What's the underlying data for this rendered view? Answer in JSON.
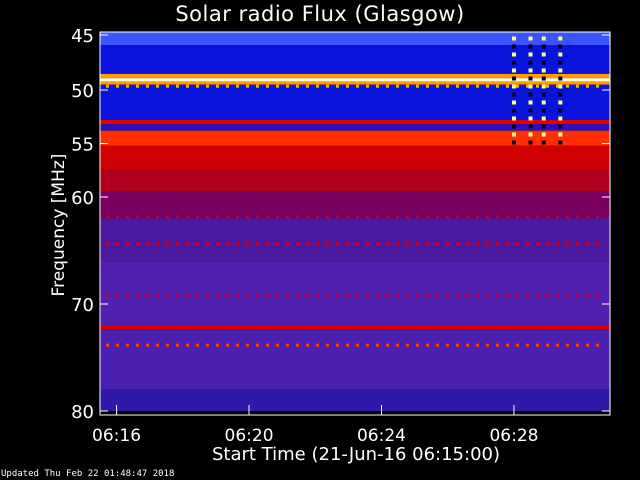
{
  "chart_data": {
    "type": "heatmap",
    "title": "Solar radio Flux (Glasgow)",
    "xlabel": "Start Time (21-Jun-16 06:15:00)",
    "ylabel": "Frequency [MHz]",
    "xlim_minutes_after_0600": [
      15.5,
      30.9
    ],
    "ylim": [
      45,
      80
    ],
    "y_ticks": [
      45,
      50,
      55,
      60,
      70,
      80
    ],
    "x_ticks": [
      "06:16",
      "06:20",
      "06:24",
      "06:28"
    ],
    "x_tick_minutes_after_0600": [
      16,
      20,
      24,
      28
    ],
    "bands": [
      {
        "from": 44.5,
        "to": 45.8,
        "color": "#3a55ff"
      },
      {
        "from": 45.8,
        "to": 48.5,
        "color": "#0a14dc"
      },
      {
        "from": 48.5,
        "to": 48.9,
        "color": "#ff9a00"
      },
      {
        "from": 48.9,
        "to": 49.2,
        "color": "#ffffe0"
      },
      {
        "from": 49.2,
        "to": 49.5,
        "color": "#ff9a00"
      },
      {
        "from": 49.5,
        "to": 52.8,
        "color": "#0a14dc"
      },
      {
        "from": 52.8,
        "to": 53.2,
        "color": "#e00000"
      },
      {
        "from": 53.2,
        "to": 53.8,
        "color": "#2a10c0"
      },
      {
        "from": 53.8,
        "to": 55.2,
        "color": "#ff3000"
      },
      {
        "from": 55.2,
        "to": 57.5,
        "color": "#d00000"
      },
      {
        "from": 57.5,
        "to": 59.5,
        "color": "#b00020"
      },
      {
        "from": 59.5,
        "to": 62.0,
        "color": "#7a0060"
      },
      {
        "from": 62.0,
        "to": 66.0,
        "color": "#4a1aa0"
      },
      {
        "from": 66.0,
        "to": 72.0,
        "color": "#5020b0"
      },
      {
        "from": 72.0,
        "to": 72.4,
        "color": "#e00000"
      },
      {
        "from": 72.4,
        "to": 78.0,
        "color": "#4a20b0"
      },
      {
        "from": 78.0,
        "to": 80.0,
        "color": "#3018a8"
      }
    ],
    "dotted_lines": [
      {
        "freq": 49.6,
        "color": "#ffb000"
      },
      {
        "freq": 61.8,
        "color": "#c00030"
      },
      {
        "freq": 64.3,
        "color": "#c00030"
      },
      {
        "freq": 69.2,
        "color": "#b00040"
      },
      {
        "freq": 73.8,
        "color": "#ff4000"
      }
    ],
    "burst_time_minutes_after_0600": [
      28.0,
      28.5,
      28.9,
      29.4
    ],
    "burst_range": [
      45,
      55
    ]
  },
  "footer": {
    "updated": "Updated Thu Feb 22 01:48:47 2018"
  }
}
